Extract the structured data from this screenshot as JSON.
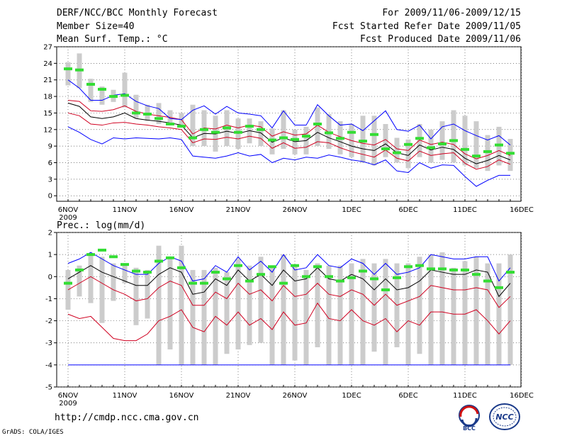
{
  "header": {
    "title": "DERF/NCC/BCC Monthly Forecast",
    "member_size": "Member Size=40",
    "variable": "Mean Surf. Temp.: °C",
    "period": "For 2009/11/06-2009/12/15",
    "started": "Fcst Started Refer Date 2009/11/05",
    "produced": "Fcst Produced Date 2009/11/06"
  },
  "footer": {
    "url": "http://cmdp.ncc.cma.gov.cn",
    "grads": "GrADS: COLA/IGES",
    "logo_bcc": "BCC",
    "logo_ncc": "NCC"
  },
  "colors": {
    "blue": "#0000ff",
    "red": "#d00020",
    "black": "#000000",
    "green": "#33dd33",
    "gray": "#cccccc",
    "grid": "#555555"
  },
  "chart_data": [
    {
      "type": "line",
      "title": "Mean Surf. Temp.: °C",
      "x_start": "2009-11-06",
      "n_days": 40,
      "x_ticks": [
        "6NOV",
        "11NOV",
        "16NOV",
        "21NOV",
        "26NOV",
        "1DEC",
        "6DEC",
        "11DEC",
        "16DEC"
      ],
      "x_year_label": "2009",
      "ylim": [
        -1,
        27
      ],
      "y_ticks": [
        "0",
        "3",
        "6",
        "9",
        "12",
        "15",
        "18",
        "21",
        "24",
        "27"
      ],
      "series": [
        {
          "name": "max",
          "color": "blue",
          "values": [
            12.5,
            11.5,
            10.2,
            9.4,
            10.5,
            10.3,
            10.5,
            10.4,
            10.3,
            10.5,
            10.2,
            7.2,
            7,
            6.8,
            7.2,
            7.8,
            7.2,
            7.5,
            6,
            6.8,
            6.5,
            7,
            6.8,
            7.4,
            7,
            6.5,
            6.2,
            5.6,
            6.5,
            4.5,
            4.2,
            6,
            5,
            5.6,
            5.5,
            3.5,
            1.7,
            2.8,
            3.7,
            3.7
          ]
        },
        {
          "name": "upper",
          "color": "red",
          "values": [
            15,
            14.5,
            13,
            12.8,
            13.2,
            13.3,
            13,
            12.8,
            12.5,
            12.3,
            12,
            9.6,
            10.3,
            10.2,
            10.6,
            10.3,
            10.8,
            10.4,
            8.6,
            9.6,
            8.6,
            8.8,
            9.8,
            9.6,
            8.7,
            8,
            7.5,
            7,
            8.3,
            6.8,
            6.3,
            8.1,
            7.3,
            7.6,
            7.8,
            5.9,
            4.8,
            5.3,
            6.5,
            5.7
          ]
        },
        {
          "name": "mean",
          "color": "black",
          "values": [
            16.8,
            16.2,
            14.3,
            14,
            14.3,
            15,
            14,
            13.7,
            13.5,
            13.2,
            12.8,
            10.5,
            11.3,
            11.2,
            11.7,
            11.3,
            11.8,
            11.4,
            9.7,
            10.5,
            9.8,
            10,
            11.5,
            10.5,
            9.8,
            9,
            8.5,
            8.2,
            9.4,
            7.8,
            7.3,
            9.2,
            8.3,
            8.8,
            8.4,
            6.8,
            5.8,
            6.4,
            7.3,
            6.5
          ]
        },
        {
          "name": "lower",
          "color": "red",
          "values": [
            17.3,
            17.1,
            15.4,
            15.3,
            15.6,
            16.3,
            15.3,
            14.8,
            14.5,
            14.2,
            13.8,
            11.2,
            12.3,
            12.1,
            12.8,
            12.3,
            12.8,
            12.5,
            10.8,
            11.6,
            11,
            11.2,
            12.8,
            11.5,
            10.7,
            10,
            9.5,
            9.2,
            10.2,
            8.5,
            8.2,
            10.1,
            9.3,
            9.7,
            9.3,
            7.6,
            6.7,
            7.3,
            8.2,
            7.3
          ]
        },
        {
          "name": "min",
          "color": "blue",
          "values": [
            21,
            19.5,
            17.3,
            17.3,
            18.2,
            18.5,
            17.1,
            16.3,
            15.8,
            14,
            13.8,
            15.5,
            16.3,
            14.8,
            16.2,
            15,
            14.8,
            14.5,
            12.3,
            15.4,
            12.8,
            12.8,
            16.5,
            14.5,
            12.8,
            13,
            11.8,
            13.6,
            15.4,
            12,
            11.7,
            12.8,
            10.3,
            12.5,
            13,
            11.8,
            10.9,
            10.1,
            10.9,
            9.2
          ]
        }
      ],
      "ensemble_bars": {
        "lows": [
          20,
          19.5,
          17,
          16.5,
          17,
          16,
          14,
          13.6,
          13,
          12.8,
          12.5,
          9,
          9,
          8,
          9,
          8.5,
          9.5,
          9,
          7.5,
          8.5,
          7.5,
          7.5,
          9,
          8.5,
          7.5,
          7,
          6,
          5.5,
          7,
          6,
          5,
          7,
          6,
          6.5,
          6,
          5.5,
          5,
          4.5,
          5.5,
          4.5
        ],
        "highs": [
          24.2,
          25.8,
          21.2,
          19.8,
          19.2,
          22.3,
          18.3,
          16.5,
          16.8,
          15.5,
          15,
          16.5,
          15.5,
          14.5,
          15.5,
          14,
          14,
          13.5,
          12.2,
          15.5,
          12,
          12.5,
          16,
          14.8,
          13.5,
          13,
          14.5,
          14.5,
          13,
          10.5,
          10.2,
          13,
          12,
          13.5,
          15.5,
          14.5,
          13.5,
          11,
          12.5,
          10.3
        ]
      },
      "green_marks": [
        23,
        22.8,
        20.2,
        19.3,
        18,
        18.2,
        15,
        14.8,
        14,
        13,
        12.6,
        10.5,
        12,
        11.5,
        12.3,
        11.5,
        12.6,
        12,
        10.1,
        10.5,
        10.2,
        10.8,
        13,
        11.4,
        10.4,
        11.5,
        9.9,
        11.1,
        8.5,
        7.8,
        9.3,
        10.4,
        8.7,
        9.4,
        10,
        8.4,
        7.2,
        8,
        9.2,
        7.7
      ]
    },
    {
      "type": "line",
      "title": "Prec.: log(mm/d)",
      "x_start": "2009-11-06",
      "n_days": 40,
      "x_ticks": [
        "6NOV",
        "11NOV",
        "16NOV",
        "21NOV",
        "26NOV",
        "1DEC",
        "6DEC",
        "11DEC",
        "16DEC"
      ],
      "x_year_label": "2009",
      "ylim": [
        -5,
        2
      ],
      "y_ticks": [
        "-5",
        "-4",
        "-3",
        "-2",
        "-1",
        "0",
        "1",
        "2"
      ],
      "series": [
        {
          "name": "max",
          "color": "blue",
          "values": [
            0.6,
            0.8,
            1.1,
            0.8,
            0.5,
            0.3,
            0.1,
            0.1,
            0.6,
            0.9,
            0.7,
            -0.2,
            -0.1,
            0.5,
            0.2,
            0.9,
            0.3,
            0.7,
            0.2,
            1,
            0.3,
            0.4,
            1,
            0.5,
            0.4,
            0.8,
            0.6,
            0.1,
            0.6,
            0.1,
            0.2,
            0.4,
            1,
            0.9,
            0.8,
            0.8,
            0.9,
            0.9,
            -0.2,
            0.4
          ]
        },
        {
          "name": "mean",
          "color": "black",
          "values": [
            -0.1,
            0.2,
            0.5,
            0.2,
            0,
            -0.2,
            -0.4,
            -0.4,
            0.1,
            0.4,
            0.2,
            -0.8,
            -0.7,
            -0.1,
            -0.4,
            0.3,
            -0.2,
            0.1,
            -0.4,
            0.3,
            -0.2,
            -0.1,
            0.4,
            -0.1,
            -0.2,
            0.1,
            -0.1,
            -0.6,
            -0.1,
            -0.6,
            -0.5,
            -0.2,
            0.3,
            0.2,
            0.1,
            0.1,
            0.3,
            0.2,
            -0.9,
            -0.3
          ]
        },
        {
          "name": "upper",
          "color": "red",
          "values": [
            -0.6,
            -0.3,
            0,
            -0.3,
            -0.6,
            -0.8,
            -1.1,
            -1,
            -0.5,
            -0.2,
            -0.4,
            -1.3,
            -1.3,
            -0.7,
            -1,
            -0.3,
            -0.8,
            -0.6,
            -1.1,
            -0.4,
            -0.9,
            -0.8,
            -0.3,
            -0.8,
            -0.9,
            -0.6,
            -0.8,
            -1.3,
            -0.8,
            -1.3,
            -1.1,
            -0.9,
            -0.4,
            -0.5,
            -0.6,
            -0.6,
            -0.5,
            -0.6,
            -1.4,
            -0.9
          ]
        },
        {
          "name": "lower",
          "color": "red",
          "values": [
            -1.7,
            -1.9,
            -1.8,
            -2.3,
            -2.8,
            -2.9,
            -2.9,
            -2.6,
            -2,
            -1.8,
            -1.5,
            -2.3,
            -2.5,
            -1.8,
            -2.2,
            -1.6,
            -2.2,
            -1.9,
            -2.4,
            -1.6,
            -2.2,
            -2.1,
            -1.2,
            -1.9,
            -2,
            -1.5,
            -2,
            -2.2,
            -1.9,
            -2.5,
            -2,
            -2.2,
            -1.6,
            -1.6,
            -1.7,
            -1.7,
            -1.5,
            -2,
            -2.6,
            -2
          ]
        },
        {
          "name": "floor",
          "color": "blue",
          "values": [
            -4,
            -4,
            -4,
            -4,
            -4,
            -4,
            -4,
            -4,
            -4,
            -4,
            -4,
            -4,
            -4,
            -4,
            -4,
            -4,
            -4,
            -4,
            -4,
            -4,
            -4,
            -4,
            -4,
            -4,
            -4,
            -4,
            -4,
            -4,
            -4,
            -4,
            -4,
            -4,
            -4,
            -4,
            -4,
            -4,
            -4,
            -4,
            -4,
            -4
          ]
        }
      ],
      "ensemble_bars": {
        "lows": [
          -1.5,
          -0.9,
          -1.2,
          -2.1,
          -1.1,
          -0.3,
          -2.2,
          -1.9,
          -4,
          -3.3,
          -4,
          -4,
          -4,
          -4,
          -3.5,
          -3.3,
          -3.1,
          -3,
          -4,
          -4,
          -3.8,
          -4,
          -3.2,
          -4,
          -4,
          -4,
          -4,
          -3.4,
          -4,
          -3.2,
          -4,
          -3.5,
          -4,
          -4,
          -4,
          -4,
          -4,
          -4,
          -4,
          -4
        ],
        "highs": [
          0.3,
          0.5,
          1,
          0.9,
          0.6,
          0.6,
          0.4,
          0.3,
          1.4,
          0.9,
          1.4,
          0.3,
          0.3,
          0.4,
          0.2,
          0.8,
          0.5,
          0.9,
          0.4,
          1,
          0.5,
          0.3,
          0.6,
          0.5,
          0.5,
          0.6,
          0.8,
          0.6,
          0.8,
          0.6,
          0.6,
          0.9,
          1,
          1.1,
          0.4,
          0.7,
          0.9,
          0.6,
          0.6,
          1
        ]
      },
      "green_marks": [
        -0.3,
        0.3,
        1,
        1.2,
        0.9,
        0.55,
        0.25,
        0.2,
        0.7,
        0.85,
        0.4,
        -0.3,
        -0.3,
        0.2,
        -0.1,
        0.5,
        -0.2,
        0.1,
        0.45,
        -0.3,
        0.5,
        0,
        0.45,
        0,
        -0.2,
        -0.05,
        0.25,
        -0.1,
        -0.6,
        -0.05,
        0.45,
        0.5,
        0.35,
        0.35,
        0.3,
        0.3,
        0.1,
        -0.2,
        -0.5,
        0.2
      ]
    }
  ]
}
